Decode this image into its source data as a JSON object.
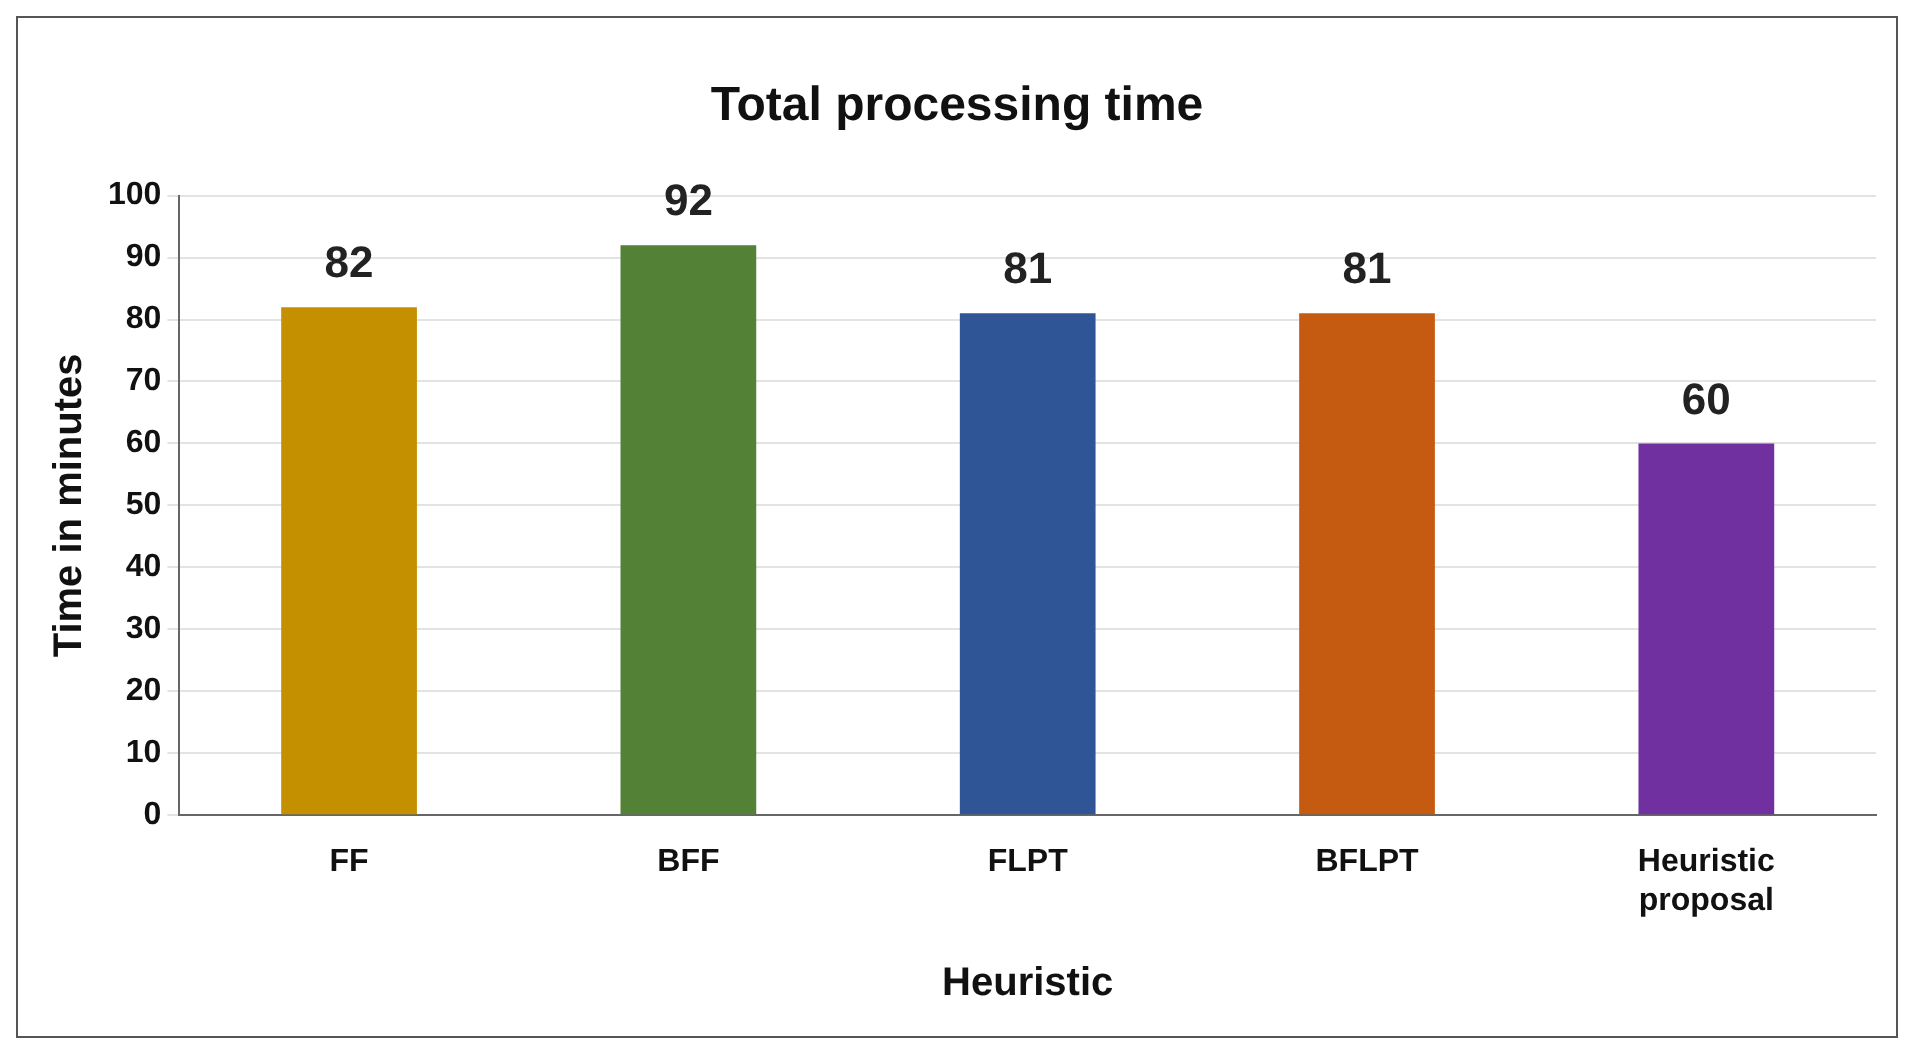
{
  "chart_data": {
    "type": "bar",
    "title": "Total processing time",
    "xlabel": "Heuristic",
    "ylabel": "Time in minutes",
    "categories": [
      "FF",
      "BFF",
      "FLPT",
      "BFLPT",
      "Heuristic proposal"
    ],
    "values": [
      82,
      92,
      81,
      81,
      60
    ],
    "colors": [
      "#c49000",
      "#538135",
      "#2f5597",
      "#c55a11",
      "#7030a0"
    ],
    "ylim": [
      0,
      100
    ],
    "yticks": [
      0,
      10,
      20,
      30,
      40,
      50,
      60,
      70,
      80,
      90,
      100
    ],
    "grid": "y",
    "data_labels": true,
    "legend": false
  }
}
